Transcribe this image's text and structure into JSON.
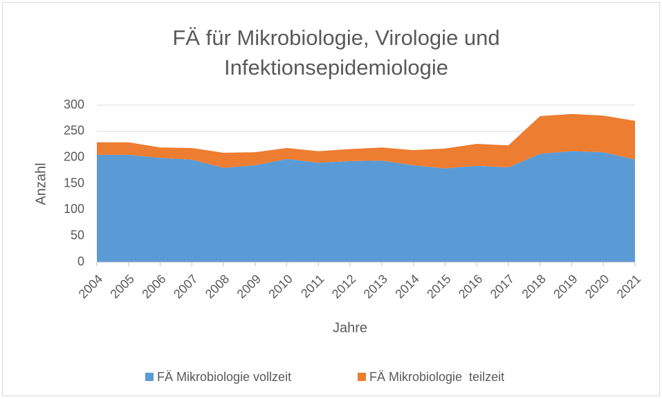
{
  "chart_data": {
    "type": "stacked_area",
    "title": [
      "FÄ für Mikrobiologie, Virologie und",
      "Infektionsepidemiologie"
    ],
    "x_label": "Jahre",
    "y_label": "Anzahl",
    "categories": [
      "2004",
      "2005",
      "2006",
      "2007",
      "2008",
      "2009",
      "2010",
      "2011",
      "2012",
      "2013",
      "2014",
      "2015",
      "2016",
      "2017",
      "2018",
      "2019",
      "2020",
      "2021"
    ],
    "series": [
      {
        "name": "FÄ Mikrobiologie vollzeit",
        "color": "#5b9bd5",
        "values": [
          205,
          205,
          199,
          196,
          180,
          185,
          197,
          190,
          193,
          194,
          185,
          179,
          184,
          181,
          207,
          212,
          210,
          196
        ]
      },
      {
        "name": "FÄ Mikrobiologie  teilzeit",
        "color": "#ed7d31",
        "values": [
          24,
          24,
          20,
          22,
          29,
          25,
          21,
          22,
          23,
          25,
          29,
          38,
          42,
          42,
          72,
          71,
          70,
          74
        ]
      }
    ],
    "ylim": [
      0,
      300
    ],
    "yticks": [
      0,
      50,
      100,
      150,
      200,
      250,
      300
    ],
    "grid": true,
    "legend": "bottom"
  }
}
